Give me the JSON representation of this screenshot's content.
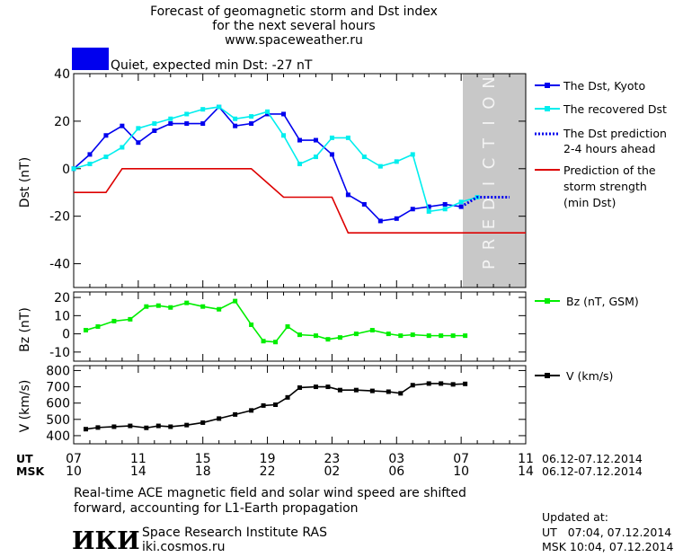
{
  "header": {
    "title_lines": [
      "Forecast of geomagnetic storm and Dst index",
      "for the next several hours",
      "www.spaceweather.ru"
    ],
    "status_text": "Quiet, expected min Dst: -27 nT",
    "status_color": "#0000ee"
  },
  "chart_data": [
    {
      "type": "line",
      "id": "dst",
      "ylabel": "Dst (nT)",
      "ylim": [
        -50,
        40
      ],
      "yticks": [
        40,
        20,
        0,
        -20,
        -40
      ],
      "x_hours_range": [
        0,
        28
      ],
      "prediction_band_label": "PREDICTION",
      "series": [
        {
          "name": "The Dst, Kyoto",
          "color": "#0000ee",
          "marker": "square",
          "x": [
            0,
            1,
            2,
            3,
            4,
            5,
            6,
            7,
            8,
            9,
            10,
            11,
            12,
            13,
            14,
            15,
            16,
            17,
            18,
            19,
            20,
            21,
            22,
            23,
            24
          ],
          "y": [
            0,
            6,
            14,
            18,
            11,
            16,
            19,
            19,
            19,
            26,
            18,
            19,
            23,
            23,
            12,
            12,
            6,
            -11,
            -15,
            -22,
            -21,
            -17,
            -16,
            -15,
            -16
          ]
        },
        {
          "name": "The recovered Dst",
          "color": "#00eeee",
          "marker": "square",
          "x": [
            0,
            1,
            2,
            3,
            4,
            5,
            6,
            7,
            8,
            9,
            10,
            11,
            12,
            13,
            14,
            15,
            16,
            17,
            18,
            19,
            20,
            21,
            22,
            23,
            24,
            25
          ],
          "y": [
            0,
            2,
            5,
            9,
            17,
            19,
            21,
            23,
            25,
            26,
            21,
            22,
            24,
            14,
            2,
            5,
            13,
            13,
            5,
            1,
            3,
            6,
            -18,
            -17,
            -14,
            -12
          ]
        },
        {
          "name": "The Dst prediction 2-4 hours ahead",
          "color": "#0000ee",
          "style": "dotted",
          "x": [
            24,
            25,
            26,
            27
          ],
          "y": [
            -16,
            -12,
            -12,
            -12
          ]
        },
        {
          "name": "Prediction of the storm strength (min Dst)",
          "color": "#dd0000",
          "style": "step",
          "x": [
            0,
            2,
            3,
            11,
            12,
            13,
            16,
            17,
            28
          ],
          "y": [
            -10,
            -10,
            0,
            0,
            -6,
            -12,
            -12,
            -27,
            -27
          ]
        }
      ],
      "legend": [
        "The Dst, Kyoto",
        "The recovered Dst",
        "The Dst prediction",
        "2-4 hours ahead",
        "Prediction of the",
        "storm strength",
        "(min Dst)"
      ]
    },
    {
      "type": "line",
      "id": "bz",
      "ylabel": "Bz (nT)",
      "ylim": [
        -15,
        23
      ],
      "yticks": [
        20,
        10,
        0,
        -10
      ],
      "series": [
        {
          "name": "Bz (nT, GSM)",
          "color": "#00ee00",
          "marker": "square",
          "x": [
            0.75,
            1.5,
            2.5,
            3.5,
            4.5,
            5.25,
            6,
            7,
            8,
            9,
            10,
            11,
            11.75,
            12.5,
            13.25,
            14,
            15,
            15.75,
            16.5,
            17.5,
            18.5,
            19.5,
            20.25,
            21,
            22,
            22.75,
            23.5,
            24.25
          ],
          "y": [
            2,
            4,
            7,
            8,
            15,
            15.5,
            14.5,
            17,
            15,
            13.5,
            18,
            5,
            -4,
            -4.5,
            4,
            -0.5,
            -1,
            -3,
            -2,
            0,
            2,
            0,
            -1,
            -0.5,
            -1,
            -1,
            -1,
            -1
          ]
        }
      ],
      "legend": [
        "Bz (nT, GSM)"
      ]
    },
    {
      "type": "line",
      "id": "v",
      "ylabel": "V (km/s)",
      "ylim": [
        350,
        830
      ],
      "yticks": [
        800,
        700,
        600,
        500,
        400
      ],
      "series": [
        {
          "name": "V (km/s)",
          "color": "#000000",
          "marker": "square",
          "x": [
            0.75,
            1.5,
            2.5,
            3.5,
            4.5,
            5.25,
            6,
            7,
            8,
            9,
            10,
            11,
            11.75,
            12.5,
            13.25,
            14,
            15,
            15.75,
            16.5,
            17.5,
            18.5,
            19.5,
            20.25,
            21,
            22,
            22.75,
            23.5,
            24.25
          ],
          "y": [
            440,
            450,
            455,
            460,
            448,
            460,
            455,
            465,
            480,
            505,
            530,
            555,
            585,
            590,
            635,
            695,
            700,
            700,
            680,
            680,
            675,
            670,
            660,
            710,
            720,
            720,
            715,
            718
          ]
        }
      ],
      "legend": [
        "V (km/s)"
      ]
    }
  ],
  "time_axis": {
    "ut_label": "UT",
    "msk_label": "MSK",
    "ut_ticks": [
      "07",
      "11",
      "15",
      "19",
      "23",
      "03",
      "07",
      "11"
    ],
    "msk_ticks": [
      "10",
      "14",
      "18",
      "22",
      "02",
      "06",
      "10",
      "14"
    ],
    "ut_range": "06.12-07.12.2014",
    "msk_range": "06.12-07.12.2014"
  },
  "footer": {
    "note_lines": [
      "Real-time ACE magnetic field and solar wind speed are shifted",
      "forward, accounting for L1-Earth propagation"
    ],
    "logo_text": "ИКИ",
    "institute": "Space Research Institute RAS",
    "site": "iki.cosmos.ru",
    "updated_label": "Updated at:",
    "updated_ut": "UT   07:04, 07.12.2014",
    "updated_msk": "MSK 10:04, 07.12.2014"
  }
}
